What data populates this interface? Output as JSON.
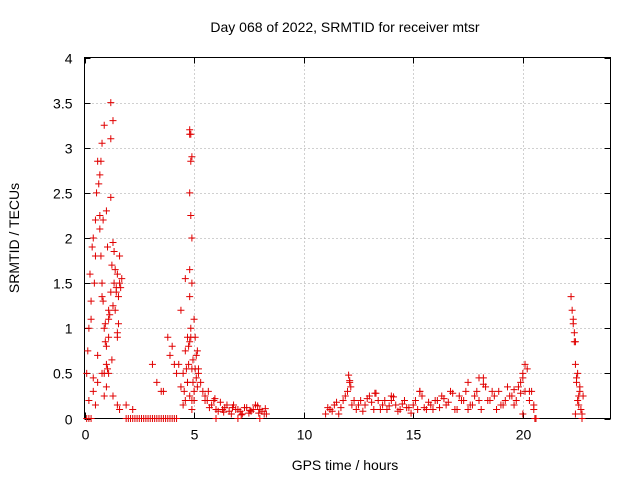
{
  "chart_data": {
    "type": "scatter",
    "title": "Day 068 of 2022, SRMTID for receiver mtsr",
    "xlabel": "GPS time / hours",
    "ylabel": "SRMTID / TECUs",
    "xlim": [
      0,
      24
    ],
    "ylim": [
      0,
      4
    ],
    "xticks": [
      0,
      5,
      10,
      15,
      20
    ],
    "xtick_labels": [
      "0",
      "5",
      "10",
      "15",
      "20"
    ],
    "yticks": [
      0,
      0.5,
      1,
      1.5,
      2,
      2.5,
      3,
      3.5,
      4
    ],
    "ytick_labels": [
      "0",
      "0.5",
      "1",
      "1.5",
      "2",
      "2.5",
      "3",
      "3.5",
      "4"
    ],
    "grid": true,
    "marker": "+",
    "color": "#e00000",
    "series": [
      {
        "name": "SRMTID",
        "x": [
          0.1,
          0.15,
          0.2,
          0.25,
          0.3,
          0.35,
          0.4,
          0.45,
          0.5,
          0.55,
          0.6,
          0.65,
          0.7,
          0.75,
          0.8,
          0.85,
          0.9,
          0.95,
          1.0,
          1.05,
          1.1,
          1.15,
          1.2,
          1.25,
          1.3,
          1.35,
          1.4,
          1.45,
          1.5,
          1.55,
          1.6,
          1.65,
          1.7,
          0.3,
          0.5,
          0.7,
          0.8,
          0.9,
          1.0,
          1.1,
          1.2,
          1.3,
          1.5,
          0.8,
          1.0,
          1.2,
          1.4,
          0.6,
          0.9,
          1.1,
          1.3,
          1.5,
          0.2,
          0.4,
          1.0,
          1.6,
          1.2,
          1.25,
          0.7,
          0.75,
          0.85,
          1.05,
          0.95,
          1.35,
          1.45,
          1.55,
          0.4,
          0.6,
          0.8,
          1.1,
          1.3,
          1.5,
          1.6,
          0.5,
          0.9,
          2.0,
          2.2,
          2.4,
          2.6,
          2.8,
          3.0,
          3.2,
          3.4,
          3.6,
          3.8,
          4.0,
          4.2,
          0.1,
          0.2,
          0.3,
          1.9,
          2.1,
          2.3,
          2.5,
          2.7,
          2.9,
          3.1,
          3.3,
          3.5,
          3.7,
          3.9,
          4.1,
          1.9,
          2.2,
          3.1,
          3.3,
          3.5,
          3.6,
          3.8,
          4.0,
          4.1,
          4.2,
          3.9,
          4.3,
          4.4,
          4.5,
          4.6,
          4.7,
          4.75,
          4.8,
          4.85,
          4.9,
          4.95,
          5.0,
          5.05,
          5.1,
          5.15,
          5.2,
          5.3,
          5.4,
          5.5,
          4.5,
          4.6,
          4.7,
          4.8,
          4.9,
          5.0,
          5.1,
          5.2,
          4.4,
          4.55,
          4.65,
          4.75,
          4.85,
          4.95,
          5.05,
          5.15,
          4.6,
          4.8,
          4.8,
          4.85,
          4.85,
          4.9,
          4.8,
          4.85,
          4.9,
          4.8,
          4.9,
          4.8,
          5.0,
          4.7,
          4.9,
          5.6,
          5.8,
          6.0,
          6.2,
          6.4,
          6.6,
          6.8,
          7.0,
          7.2,
          7.4,
          7.6,
          7.8,
          8.0,
          8.2,
          5.5,
          5.7,
          5.9,
          6.1,
          6.3,
          6.5,
          6.7,
          6.9,
          7.1,
          7.3,
          7.5,
          7.7,
          7.9,
          8.1,
          8.3,
          5.65,
          5.95,
          6.35,
          6.75,
          7.15,
          7.55,
          7.95,
          8.25,
          6.0,
          7.0,
          8.0,
          11.0,
          11.2,
          11.4,
          11.6,
          11.8,
          12.0,
          12.2,
          12.4,
          12.6,
          12.8,
          13.0,
          13.2,
          13.4,
          13.6,
          13.8,
          14.0,
          14.2,
          14.4,
          14.6,
          14.8,
          15.0,
          15.2,
          15.4,
          15.6,
          15.8,
          16.0,
          11.1,
          11.3,
          11.5,
          11.7,
          11.9,
          12.1,
          12.3,
          12.5,
          12.7,
          12.9,
          13.1,
          13.3,
          13.5,
          13.7,
          13.9,
          14.1,
          14.3,
          14.5,
          14.7,
          14.9,
          15.1,
          15.3,
          15.5,
          15.7,
          15.9,
          12.05,
          12.1,
          12.15,
          13.25,
          14.0,
          15.3,
          16.1,
          16.3,
          16.5,
          16.7,
          16.9,
          17.1,
          17.3,
          17.5,
          17.7,
          17.9,
          18.1,
          18.3,
          18.5,
          18.7,
          18.9,
          19.1,
          19.3,
          19.5,
          19.7,
          19.9,
          20.1,
          20.3,
          20.5,
          16.2,
          16.4,
          16.6,
          16.8,
          17.0,
          17.2,
          17.4,
          17.6,
          17.8,
          18.0,
          18.2,
          18.4,
          18.6,
          18.8,
          19.0,
          19.2,
          19.4,
          19.6,
          19.8,
          20.0,
          20.2,
          20.4,
          17.5,
          18.0,
          18.2,
          19.6,
          19.9,
          20.0,
          20.1,
          20.0,
          20.3,
          20.5,
          20.6,
          20.55,
          22.2,
          22.25,
          22.3,
          22.35,
          22.4,
          22.45,
          22.5,
          22.55,
          22.6,
          22.65,
          22.7,
          22.75,
          22.3,
          22.4,
          22.5,
          22.6,
          22.7,
          22.35,
          22.45,
          22.55,
          22.4
        ],
        "y": [
          0.5,
          0.75,
          1.0,
          1.6,
          1.3,
          1.9,
          2.0,
          1.5,
          2.2,
          2.5,
          2.85,
          2.6,
          2.25,
          1.8,
          1.5,
          1.3,
          1.0,
          0.85,
          0.6,
          0.55,
          0.9,
          1.15,
          1.4,
          1.7,
          1.95,
          1.5,
          1.2,
          1.45,
          1.6,
          1.35,
          1.8,
          1.45,
          1.55,
          1.1,
          1.8,
          2.1,
          3.05,
          3.25,
          2.3,
          1.1,
          3.5,
          3.3,
          0.95,
          0.5,
          0.8,
          2.45,
          1.65,
          0.4,
          0.5,
          1.2,
          1.25,
          0.9,
          0.2,
          0.45,
          0.35,
          1.5,
          3.1,
          0.65,
          2.7,
          2.85,
          2.2,
          1.9,
          1.05,
          1.85,
          1.4,
          1.05,
          0.3,
          0.7,
          1.35,
          0.5,
          0.25,
          0.15,
          0.1,
          0.15,
          0.25,
          0.0,
          0.0,
          0.0,
          0.0,
          0.0,
          0.0,
          0.0,
          0.0,
          0.0,
          0.0,
          0.0,
          0.0,
          0.0,
          0.0,
          0.0,
          0.0,
          0.0,
          0.0,
          0.0,
          0.0,
          0.0,
          0.0,
          0.0,
          0.0,
          0.0,
          0.0,
          0.0,
          0.15,
          0.1,
          0.6,
          0.4,
          0.3,
          0.3,
          0.9,
          0.8,
          0.6,
          0.5,
          0.7,
          0.6,
          0.35,
          0.15,
          0.2,
          0.4,
          0.6,
          0.85,
          0.9,
          0.55,
          0.4,
          0.3,
          0.55,
          0.7,
          0.75,
          0.5,
          0.4,
          0.3,
          0.2,
          0.5,
          0.75,
          0.4,
          0.25,
          0.1,
          0.2,
          0.45,
          0.55,
          1.2,
          0.3,
          0.55,
          0.8,
          1.0,
          0.65,
          0.9,
          0.35,
          1.55,
          3.15,
          3.2,
          3.15,
          2.85,
          2.9,
          2.5,
          2.25,
          2.0,
          1.65,
          1.5,
          1.35,
          1.1,
          0.9,
          0.2,
          0.2,
          0.15,
          0.1,
          0.18,
          0.12,
          0.08,
          0.15,
          0.1,
          0.05,
          0.12,
          0.08,
          0.15,
          0.1,
          0.05,
          0.25,
          0.12,
          0.2,
          0.08,
          0.1,
          0.15,
          0.05,
          0.1,
          0.08,
          0.12,
          0.06,
          0.1,
          0.14,
          0.08,
          0.05,
          0.3,
          0.22,
          0.07,
          0.12,
          0.04,
          0.09,
          0.06,
          0.11,
          0.0,
          0.0,
          0.0,
          0.05,
          0.1,
          0.15,
          0.05,
          0.2,
          0.3,
          0.15,
          0.1,
          0.2,
          0.15,
          0.25,
          0.1,
          0.2,
          0.15,
          0.1,
          0.2,
          0.15,
          0.1,
          0.2,
          0.12,
          0.15,
          0.1,
          0.25,
          0.1,
          0.15,
          0.2,
          0.12,
          0.08,
          0.18,
          0.12,
          0.25,
          0.4,
          0.2,
          0.15,
          0.08,
          0.22,
          0.18,
          0.28,
          0.1,
          0.2,
          0.14,
          0.24,
          0.08,
          0.16,
          0.12,
          0.06,
          0.2,
          0.3,
          0.12,
          0.18,
          0.1,
          0.48,
          0.42,
          0.35,
          0.28,
          0.25,
          0.3,
          0.2,
          0.25,
          0.15,
          0.3,
          0.1,
          0.25,
          0.2,
          0.4,
          0.15,
          0.3,
          0.1,
          0.35,
          0.2,
          0.25,
          0.3,
          0.15,
          0.35,
          0.25,
          0.2,
          0.4,
          0.3,
          0.2,
          0.15,
          0.12,
          0.22,
          0.18,
          0.28,
          0.1,
          0.2,
          0.3,
          0.15,
          0.25,
          0.2,
          0.45,
          0.2,
          0.3,
          0.1,
          0.15,
          0.2,
          0.25,
          0.15,
          0.35,
          0.45,
          0.55,
          0.3,
          0.1,
          0.45,
          0.38,
          0.32,
          0.28,
          0.5,
          0.6,
          0.05,
          0.3,
          0.1,
          0.0,
          0.0,
          1.35,
          1.2,
          1.05,
          0.85,
          0.6,
          0.4,
          0.2,
          0.15,
          0.3,
          0.1,
          0.05,
          0.25,
          1.1,
          0.85,
          0.5,
          0.35,
          0.0,
          0.95,
          0.45,
          0.25,
          0.05
        ]
      }
    ]
  }
}
